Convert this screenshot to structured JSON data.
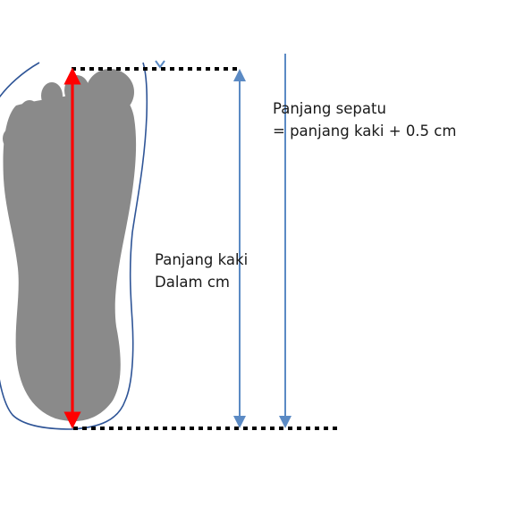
{
  "labels": {
    "shoe_length_line1": "Panjang sepatu",
    "shoe_length_line2": "= panjang kaki + 0.5 cm",
    "foot_length_line1": "Panjang kaki",
    "foot_length_line2": "Dalam cm"
  },
  "colors": {
    "foot_fill": "#8a8a8a",
    "shoe_outline": "#2f5597",
    "foot_length_arrow": "#ff0000",
    "measure_arrow": "#5b8ac4",
    "guide_line": "#000000"
  },
  "icons": {
    "foot": "footprint-silhouette",
    "shoe": "shoe-outline"
  }
}
